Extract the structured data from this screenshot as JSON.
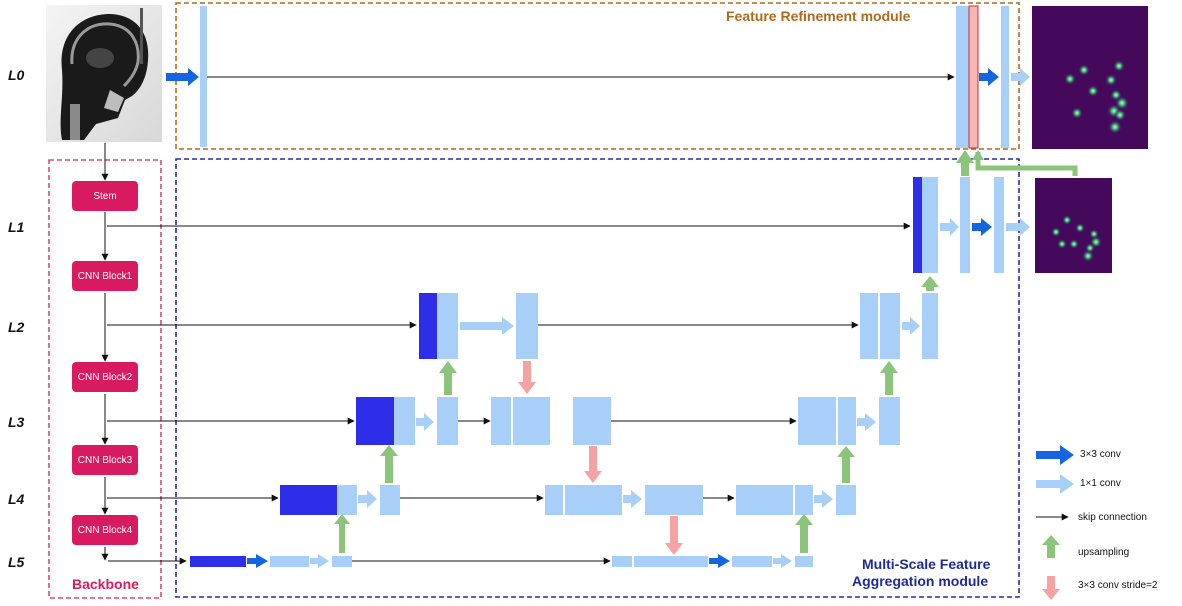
{
  "levels": [
    "L0",
    "L1",
    "L2",
    "L3",
    "L4",
    "L5"
  ],
  "backbone": {
    "title": "Backbone",
    "blocks": [
      "Stem",
      "CNN Block1",
      "CNN Block2",
      "CNN Block3",
      "CNN Block4"
    ]
  },
  "modules": {
    "refinement": "Feature Refinement module",
    "aggregation_line1": "Multi-Scale Feature",
    "aggregation_line2": "Aggregation  module"
  },
  "legend": {
    "conv3": "3×3 conv",
    "conv1": "1×1 conv",
    "skip": "skip connection",
    "up": "upsampling",
    "down": "3×3 conv stride=2"
  },
  "colors": {
    "feature": "#a8cff7",
    "deep": "#2e2ee8",
    "refine": "#f7b5b5",
    "conv3": "#1565e0",
    "up": "#8bc47a",
    "down": "#f4a2a2",
    "backbone": "#d81b60",
    "heatmap_bg": "#44095b",
    "refinement_border": "#b06a1e",
    "aggregation_border": "#2a2aa8"
  },
  "icons": {
    "xray": "skull-xray-image",
    "heatmap": "landmark-heatmap-image"
  }
}
